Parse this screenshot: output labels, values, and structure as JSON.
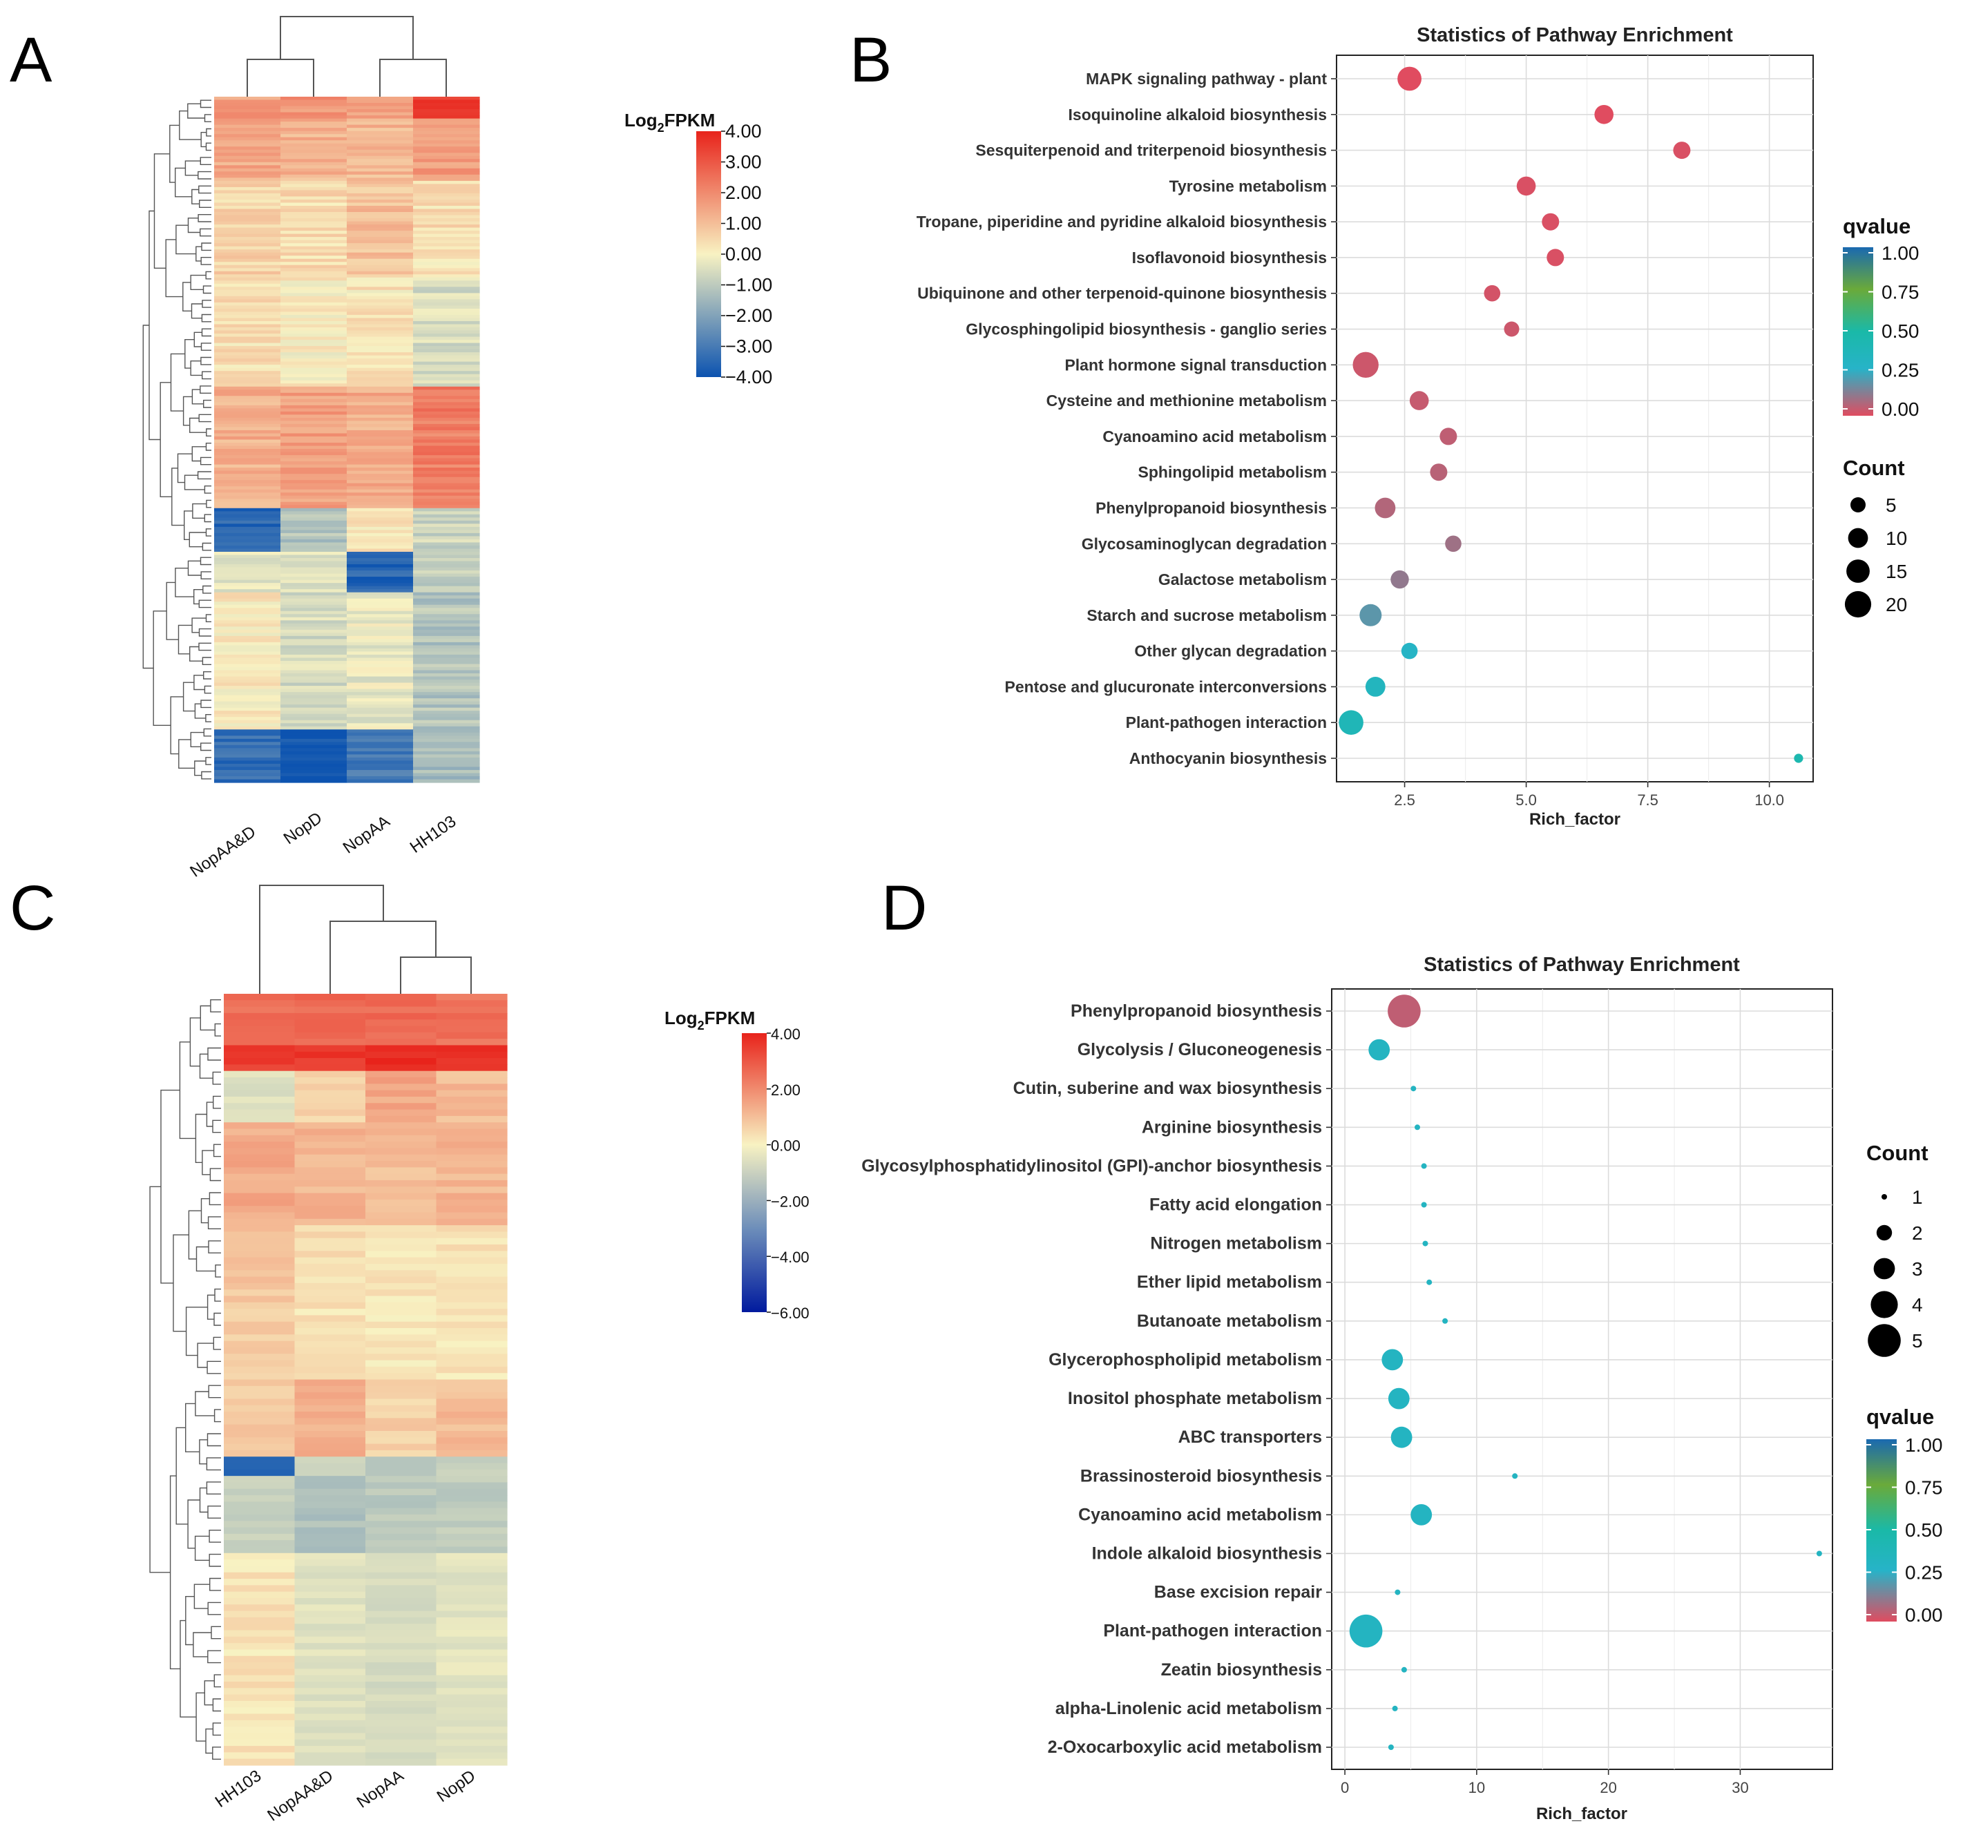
{
  "panels": {
    "A": {
      "letter": "A"
    },
    "B": {
      "letter": "B"
    },
    "C": {
      "letter": "C"
    },
    "D": {
      "letter": "D"
    }
  },
  "chart_data": [
    {
      "id": "A",
      "type": "heatmap",
      "colorbar_title": "Log",
      "colorbar_title_sub": "2",
      "colorbar_title_tail": "FPKM",
      "colorbar_ticks": [
        "4.00",
        "3.00",
        "2.00",
        "1.00",
        "0.00",
        "−1.00",
        "−2.00",
        "−3.00",
        "−4.00"
      ],
      "colorbar_range": [
        -4,
        4
      ],
      "columns": [
        "NopAA&D",
        "NopD",
        "NopAA",
        "HH103"
      ],
      "column_means": [
        0.3,
        0.1,
        0.2,
        0.3
      ],
      "colors": {
        "high": "#e8231b",
        "mid": "#f8f2c2",
        "low": "#0c53b0"
      }
    },
    {
      "id": "B",
      "type": "scatter",
      "title": "Statistics of Pathway Enrichment",
      "xlabel": "Rich_factor",
      "xlim": [
        1.1,
        10.9
      ],
      "x_ticks": [
        "2.5",
        "5.0",
        "7.5",
        "10.0"
      ],
      "x_tick_values": [
        2.5,
        5.0,
        7.5,
        10.0
      ],
      "categories": [
        "MAPK signaling pathway - plant",
        "Isoquinoline alkaloid biosynthesis",
        "Sesquiterpenoid and triterpenoid biosynthesis",
        "Tyrosine metabolism",
        "Tropane, piperidine and pyridine alkaloid biosynthesis",
        "Isoflavonoid biosynthesis",
        "Ubiquinone and other terpenoid-quinone biosynthesis",
        "Glycosphingolipid biosynthesis - ganglio series",
        "Plant hormone signal transduction",
        "Cysteine and methionine metabolism",
        "Cyanoamino acid metabolism",
        "Sphingolipid metabolism",
        "Phenylpropanoid biosynthesis",
        "Glycosaminoglycan degradation",
        "Galactose metabolism",
        "Starch and sucrose metabolism",
        "Other glycan degradation",
        "Pentose and glucuronate interconversions",
        "Plant-pathogen interaction",
        "Anthocyanin biosynthesis"
      ],
      "rich_factor": [
        2.6,
        6.6,
        8.2,
        5.0,
        5.5,
        5.6,
        4.3,
        4.7,
        1.7,
        2.8,
        3.4,
        3.2,
        2.1,
        3.5,
        2.4,
        1.8,
        2.6,
        1.9,
        1.4,
        10.6
      ],
      "count": [
        16,
        9,
        7,
        9,
        7,
        7,
        6,
        5,
        19,
        9,
        7,
        7,
        11,
        6,
        8,
        13,
        6,
        10,
        17,
        1
      ],
      "qvalue": [
        0.0,
        0.0,
        0.01,
        0.01,
        0.01,
        0.01,
        0.02,
        0.03,
        0.03,
        0.04,
        0.05,
        0.06,
        0.07,
        0.1,
        0.12,
        0.2,
        0.3,
        0.35,
        0.4,
        0.45
      ],
      "count_legend": {
        "title": "Count",
        "values": [
          5,
          10,
          15,
          20
        ]
      },
      "qvalue_legend": {
        "title": "qvalue",
        "ticks": [
          "1.00",
          "0.75",
          "0.50",
          "0.25",
          "0.00"
        ]
      }
    },
    {
      "id": "C",
      "type": "heatmap",
      "colorbar_title": "Log",
      "colorbar_title_sub": "2",
      "colorbar_title_tail": "FPKM",
      "colorbar_ticks": [
        "4.00",
        "2.00",
        "0.00",
        "−2.00",
        "−4.00",
        "−6.00"
      ],
      "colorbar_range": [
        -6,
        4
      ],
      "columns": [
        "HH103",
        "NopAA&D",
        "NopAA",
        "NopD"
      ],
      "column_means": [
        0.4,
        0.3,
        0.2,
        0.3
      ],
      "colors": {
        "high": "#e8231b",
        "mid": "#f8f2c2",
        "low": "#0c53b0"
      }
    },
    {
      "id": "D",
      "type": "scatter",
      "title": "Statistics of Pathway Enrichment",
      "xlabel": "Rich_factor",
      "xlim": [
        -1,
        37
      ],
      "x_ticks": [
        "0",
        "10",
        "20",
        "30"
      ],
      "x_tick_values": [
        0,
        10,
        20,
        30
      ],
      "categories": [
        "Phenylpropanoid biosynthesis",
        "Glycolysis / Gluconeogenesis",
        "Cutin, suberine and wax biosynthesis",
        "Arginine biosynthesis",
        "Glycosylphosphatidylinositol (GPI)-anchor biosynthesis",
        "Fatty acid elongation",
        "Nitrogen metabolism",
        "Ether lipid metabolism",
        "Butanoate metabolism",
        "Glycerophospholipid metabolism",
        "Inositol phosphate metabolism",
        "ABC transporters",
        "Brassinosteroid biosynthesis",
        "Cyanoamino acid metabolism",
        "Indole alkaloid biosynthesis",
        "Base excision repair",
        "Plant-pathogen interaction",
        "Zeatin biosynthesis",
        "alpha-Linolenic acid metabolism",
        "2-Oxocarboxylic acid metabolism"
      ],
      "rich_factor": [
        4.5,
        2.6,
        5.2,
        5.5,
        6.0,
        6.0,
        6.1,
        6.4,
        7.6,
        3.6,
        4.1,
        4.3,
        12.9,
        5.8,
        36.0,
        4.0,
        1.6,
        4.5,
        3.8,
        3.5
      ],
      "count": [
        5,
        3,
        1,
        1,
        1,
        1,
        1,
        1,
        1,
        3,
        3,
        3,
        1,
        3,
        1,
        1,
        5,
        1,
        1,
        1
      ],
      "qvalue": [
        0.05,
        0.33,
        0.33,
        0.33,
        0.33,
        0.33,
        0.33,
        0.33,
        0.33,
        0.33,
        0.33,
        0.33,
        0.33,
        0.33,
        0.33,
        0.33,
        0.33,
        0.33,
        0.33,
        0.33
      ],
      "count_legend": {
        "title": "Count",
        "values": [
          1,
          2,
          3,
          4,
          5
        ]
      },
      "qvalue_legend": {
        "title": "qvalue",
        "ticks": [
          "1.00",
          "0.75",
          "0.50",
          "0.25",
          "0.00"
        ]
      }
    }
  ]
}
